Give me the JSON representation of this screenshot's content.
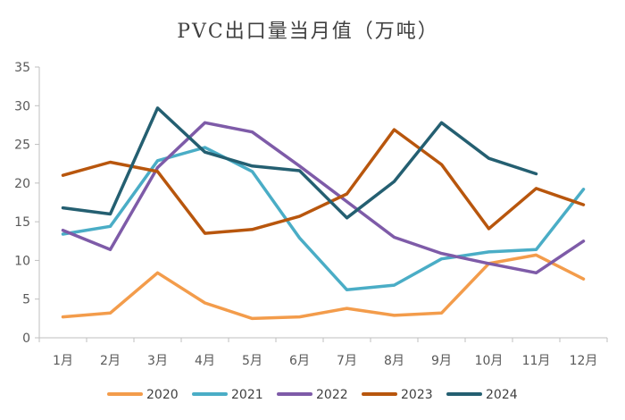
{
  "chart_data": {
    "type": "line",
    "title": "PVC出口量当月值（万吨）",
    "xlabel": "",
    "ylabel": "",
    "categories": [
      "1月",
      "2月",
      "3月",
      "4月",
      "5月",
      "6月",
      "7月",
      "8月",
      "9月",
      "10月",
      "11月",
      "12月"
    ],
    "ylim": [
      0,
      35
    ],
    "yticks": [
      0,
      5,
      10,
      15,
      20,
      25,
      30,
      35
    ],
    "legend_position": "bottom",
    "grid": false,
    "series": [
      {
        "name": "2020",
        "color": "#F39C4B",
        "values": [
          2.7,
          3.2,
          8.4,
          4.5,
          2.5,
          2.7,
          3.8,
          2.9,
          3.2,
          9.6,
          10.7,
          7.6
        ]
      },
      {
        "name": "2021",
        "color": "#4AADC6",
        "values": [
          13.4,
          14.4,
          22.9,
          24.6,
          21.5,
          12.9,
          6.2,
          6.8,
          10.2,
          11.1,
          11.4,
          19.2
        ]
      },
      {
        "name": "2022",
        "color": "#7E5BA8",
        "values": [
          13.9,
          11.4,
          22.0,
          27.8,
          26.6,
          22.2,
          17.6,
          13.0,
          10.9,
          9.6,
          8.4,
          12.5
        ]
      },
      {
        "name": "2023",
        "color": "#B8560D",
        "values": [
          21.0,
          22.7,
          21.5,
          13.5,
          14.0,
          15.7,
          18.6,
          26.9,
          22.4,
          14.1,
          19.3,
          17.2
        ]
      },
      {
        "name": "2024",
        "color": "#245F71",
        "values": [
          16.8,
          16.0,
          29.7,
          24.0,
          22.2,
          21.6,
          15.5,
          20.2,
          27.8,
          23.2,
          21.2,
          null
        ]
      }
    ]
  }
}
